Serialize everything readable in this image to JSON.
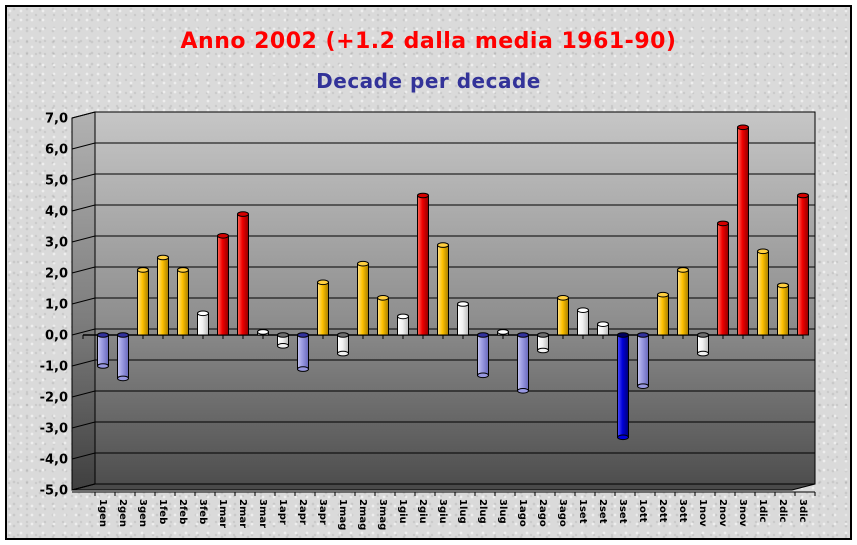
{
  "page": {
    "title": "Anno 2002 (+1.2 dalla media 1961-90)",
    "subtitle": "Decade per decade"
  },
  "colors": {
    "title_text": "#ff0000",
    "subtitle_text": "#333399",
    "background": "#dadada",
    "wall_top": "#c6c6c6",
    "wall_bottom": "#4e4e4e",
    "gridline": "#000000"
  },
  "chart_data": {
    "type": "bar",
    "title": "Anno 2002 (+1.2 dalla media 1961-90)",
    "subtitle": "Decade per decade",
    "xlabel": "",
    "ylabel": "",
    "ylim": [
      -5,
      7
    ],
    "ytick_step": 1,
    "ytick_labels": [
      "7,0",
      "6,0",
      "5,0",
      "4,0",
      "3,0",
      "2,0",
      "1,0",
      "0,0",
      "-1,0",
      "-2,0",
      "-3,0",
      "-4,0",
      "-5,0"
    ],
    "grid": true,
    "legend": false,
    "style": "3d-column",
    "categories": [
      "1gen",
      "2gen",
      "3gen",
      "1feb",
      "2feb",
      "3feb",
      "1mar",
      "2mar",
      "3mar",
      "1apr",
      "2apr",
      "3apr",
      "1mag",
      "2mag",
      "3mag",
      "1giu",
      "2giu",
      "3giu",
      "1lug",
      "2lug",
      "3lug",
      "1ago",
      "2ago",
      "3ago",
      "1set",
      "2set",
      "3set",
      "1ott",
      "2ott",
      "3ott",
      "1nov",
      "2nov",
      "3nov",
      "1dic",
      "2dic",
      "3dic"
    ],
    "values": [
      -1.0,
      -1.4,
      2.1,
      2.5,
      2.1,
      0.7,
      3.2,
      3.9,
      0.1,
      -0.35,
      -1.1,
      1.7,
      -0.6,
      2.3,
      1.2,
      0.6,
      4.5,
      2.9,
      1.0,
      -1.3,
      0.1,
      -1.8,
      -0.5,
      1.2,
      0.8,
      0.35,
      -3.3,
      -1.65,
      1.3,
      2.1,
      -0.6,
      3.6,
      6.7,
      2.7,
      1.6,
      4.5
    ],
    "bar_colors": [
      "periwinkle",
      "periwinkle",
      "gold",
      "gold",
      "gold",
      "white",
      "red",
      "red",
      "white",
      "white",
      "periwinkle",
      "gold",
      "white",
      "gold",
      "gold",
      "white",
      "red",
      "gold",
      "white",
      "periwinkle",
      "white",
      "periwinkle",
      "white",
      "gold",
      "white",
      "white",
      "navy",
      "periwinkle",
      "gold",
      "gold",
      "white",
      "red",
      "red",
      "gold",
      "gold",
      "red"
    ],
    "palette": {
      "gold": {
        "light": "#ffe08a",
        "base": "#ffc200",
        "dark": "#a67c00",
        "cap": "#ffcf40",
        "capDark": "#7d5f00"
      },
      "red": {
        "light": "#ff6a5a",
        "base": "#f00000",
        "dark": "#900000",
        "cap": "#d40000",
        "capDark": "#6e0000"
      },
      "white": {
        "light": "#ffffff",
        "base": "#f2f2f2",
        "dark": "#bdbdbd",
        "cap": "#ffffff",
        "capDark": "#6f6f6f"
      },
      "periwinkle": {
        "light": "#c4c4f2",
        "base": "#9898e0",
        "dark": "#6868bc",
        "cap": "#ababea",
        "capDark": "#31319e"
      },
      "navy": {
        "light": "#4d4dff",
        "base": "#0000d8",
        "dark": "#000078",
        "cap": "#2222e0",
        "capDark": "#000060"
      }
    }
  }
}
